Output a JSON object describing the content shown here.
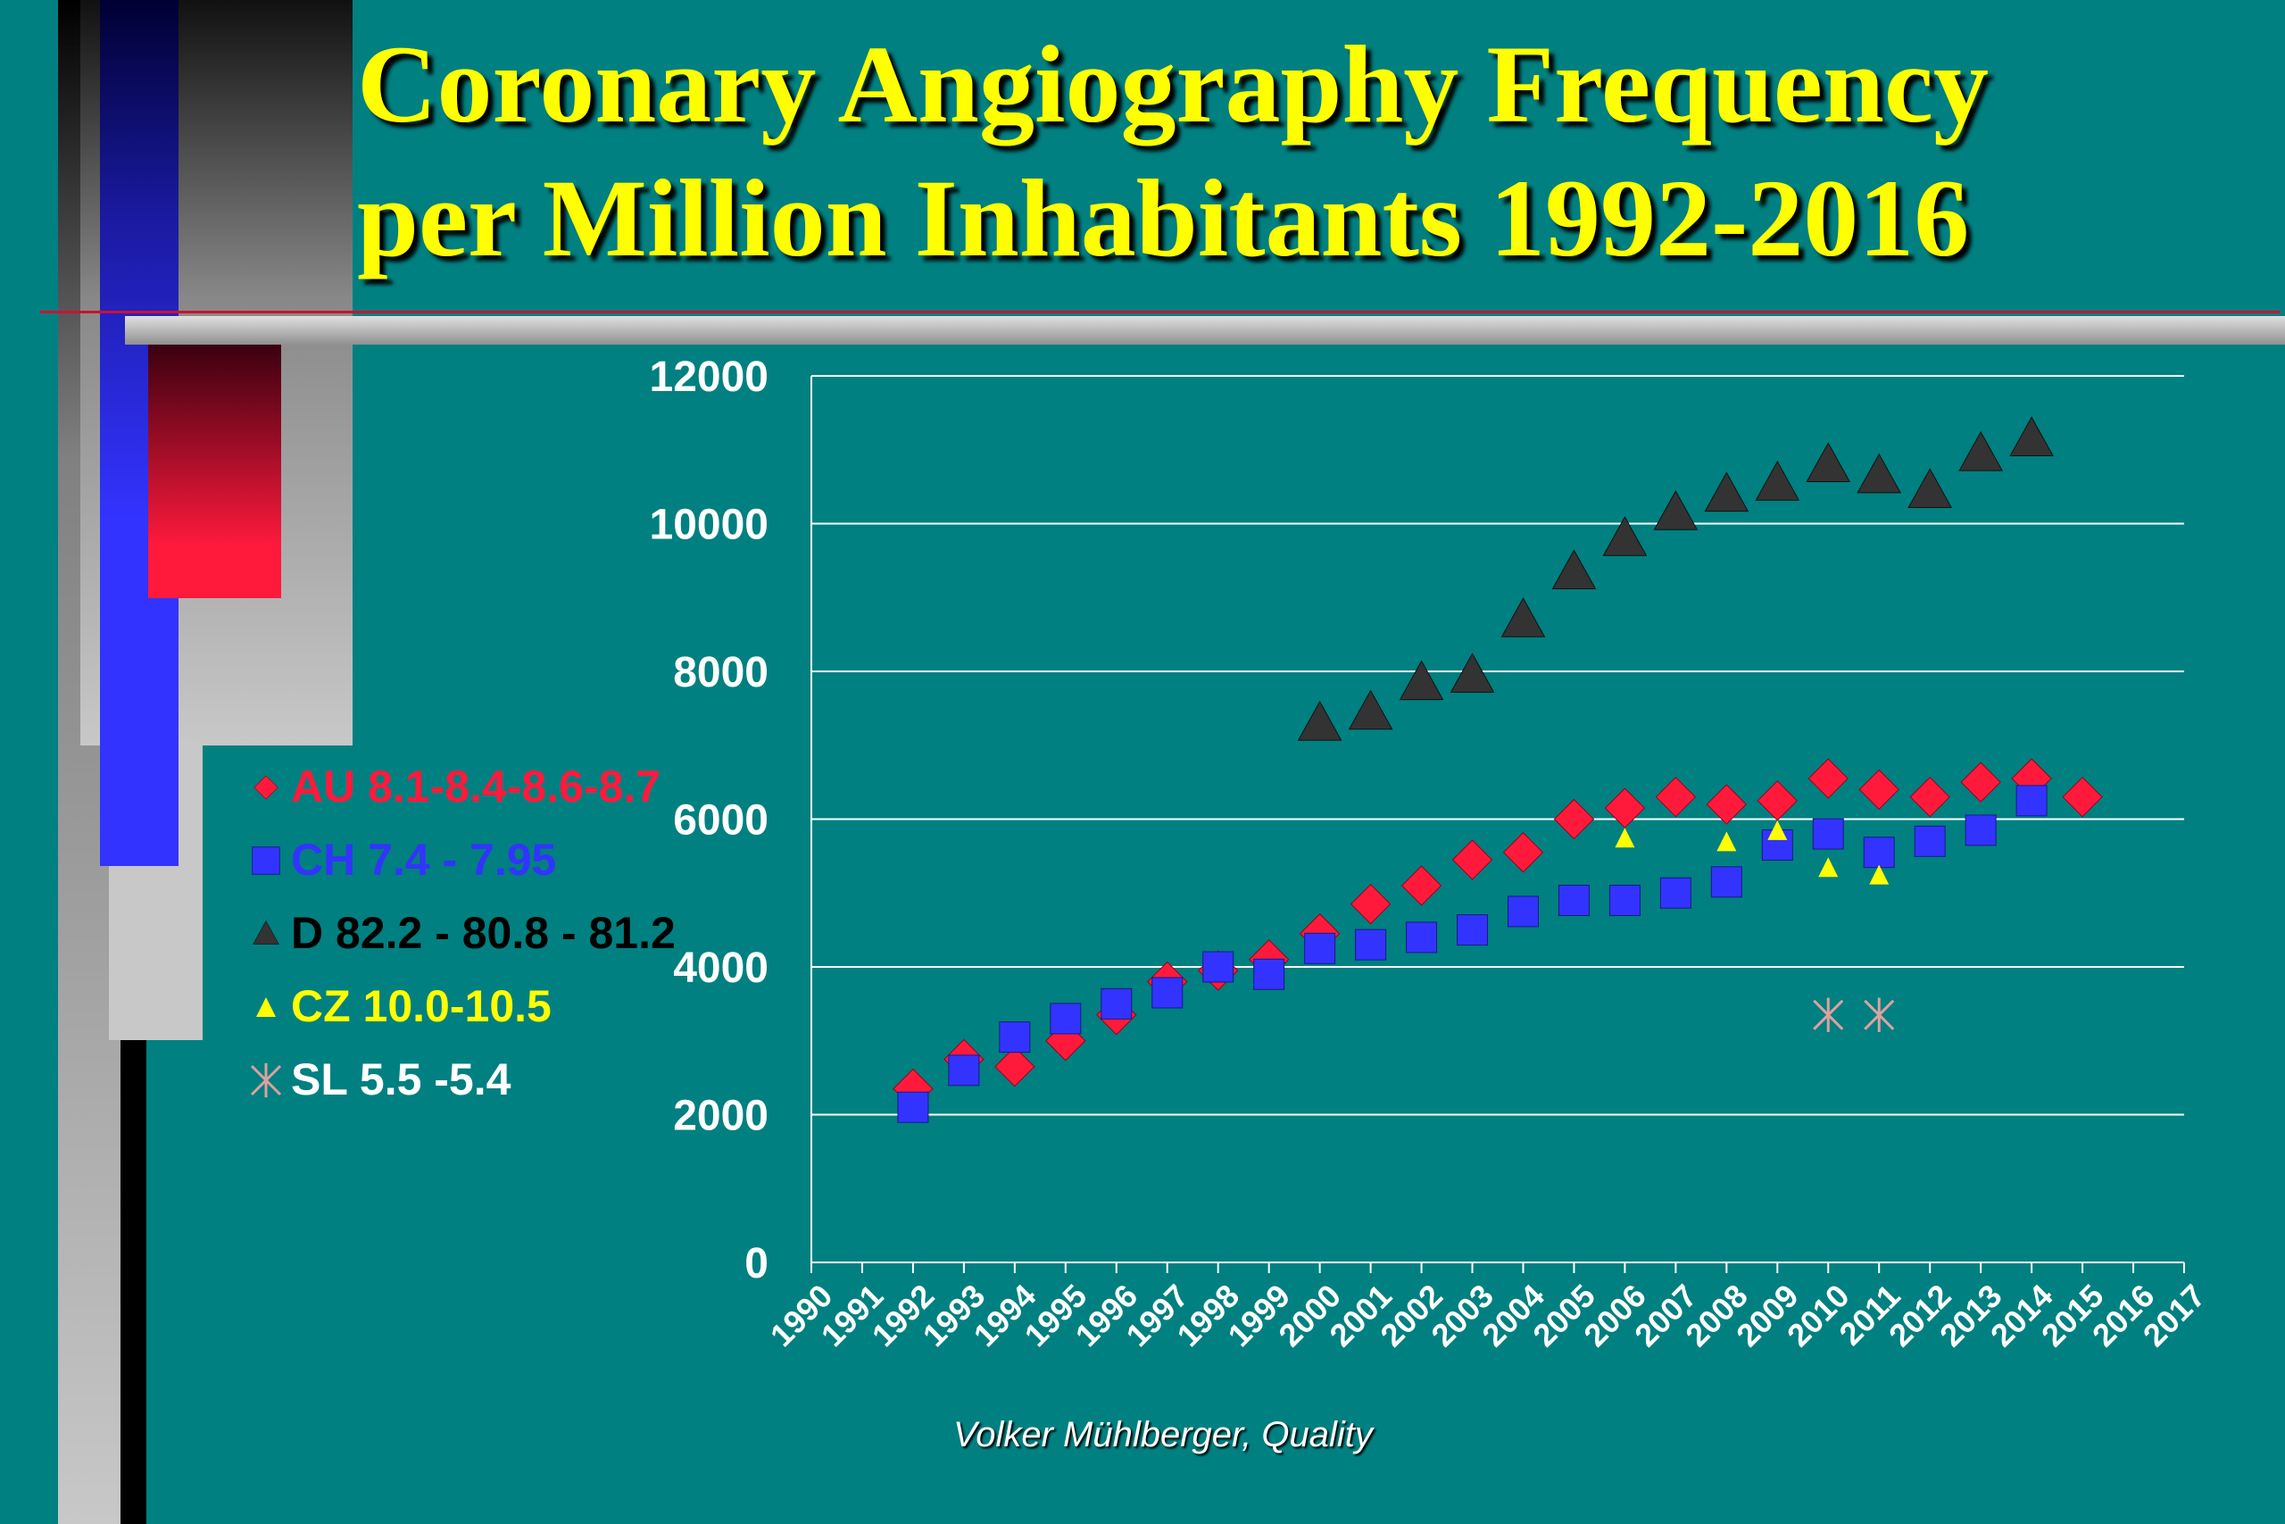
{
  "title": {
    "line1": "Coronary Angiography Frequency",
    "line2": "per Million Inhabitants 1992-2016"
  },
  "credit": "Volker Mühlberger, Quality",
  "colors": {
    "background": "#008080",
    "title": "#ffff00",
    "AU": "#ff1a3c",
    "CH": "#3333ff",
    "D": "#333333",
    "CZ": "#ffff00",
    "SL": "#e0a0a0"
  },
  "chart_data": {
    "type": "scatter",
    "title": "",
    "xlabel": "",
    "ylabel": "",
    "xlim": [
      1990,
      2017
    ],
    "ylim": [
      0,
      12000
    ],
    "y_ticks": [
      "0",
      "2000",
      "4000",
      "6000",
      "8000",
      "10000",
      "12000"
    ],
    "x_ticks": [
      "1990",
      "1991",
      "1992",
      "1993",
      "1994",
      "1995",
      "1996",
      "1997",
      "1998",
      "1999",
      "2000",
      "2001",
      "2002",
      "2003",
      "2004",
      "2005",
      "2006",
      "2007",
      "2008",
      "2009",
      "2010",
      "2011",
      "2012",
      "2013",
      "2014",
      "2015",
      "2016",
      "2017"
    ],
    "grid": true,
    "legend_position": "left",
    "series": [
      {
        "name": "AU 8.1-8.4-8.6-8.7",
        "marker": "diamond",
        "color": "#ff1a3c",
        "points": [
          [
            1992,
            2350
          ],
          [
            1993,
            2750
          ],
          [
            1994,
            2650
          ],
          [
            1995,
            3000
          ],
          [
            1996,
            3350
          ],
          [
            1997,
            3800
          ],
          [
            1998,
            3950
          ],
          [
            1999,
            4100
          ],
          [
            2000,
            4450
          ],
          [
            2001,
            4850
          ],
          [
            2002,
            5100
          ],
          [
            2003,
            5450
          ],
          [
            2004,
            5550
          ],
          [
            2005,
            6000
          ],
          [
            2006,
            6150
          ],
          [
            2007,
            6300
          ],
          [
            2008,
            6200
          ],
          [
            2009,
            6250
          ],
          [
            2010,
            6550
          ],
          [
            2011,
            6400
          ],
          [
            2012,
            6300
          ],
          [
            2013,
            6500
          ],
          [
            2014,
            6550
          ],
          [
            2015,
            6300
          ]
        ]
      },
      {
        "name": "CH 7.4 - 7.95",
        "marker": "square",
        "color": "#3333ff",
        "points": [
          [
            1992,
            2100
          ],
          [
            1993,
            2600
          ],
          [
            1994,
            3050
          ],
          [
            1995,
            3300
          ],
          [
            1996,
            3500
          ],
          [
            1997,
            3650
          ],
          [
            1998,
            4000
          ],
          [
            1999,
            3900
          ],
          [
            2000,
            4250
          ],
          [
            2001,
            4300
          ],
          [
            2002,
            4400
          ],
          [
            2003,
            4500
          ],
          [
            2004,
            4750
          ],
          [
            2005,
            4900
          ],
          [
            2006,
            4900
          ],
          [
            2007,
            5000
          ],
          [
            2008,
            5150
          ],
          [
            2009,
            5650
          ],
          [
            2010,
            5800
          ],
          [
            2011,
            5550
          ],
          [
            2012,
            5700
          ],
          [
            2013,
            5850
          ],
          [
            2014,
            6250
          ]
        ]
      },
      {
        "name": "D  82.2 - 80.8 - 81.2",
        "marker": "triangle",
        "color": "#333333",
        "points": [
          [
            2000,
            7300
          ],
          [
            2001,
            7450
          ],
          [
            2002,
            7850
          ],
          [
            2003,
            7950
          ],
          [
            2004,
            8700
          ],
          [
            2005,
            9350
          ],
          [
            2006,
            9800
          ],
          [
            2007,
            10150
          ],
          [
            2008,
            10400
          ],
          [
            2009,
            10550
          ],
          [
            2010,
            10800
          ],
          [
            2011,
            10650
          ],
          [
            2012,
            10450
          ],
          [
            2013,
            10950
          ],
          [
            2014,
            11150
          ]
        ]
      },
      {
        "name": "CZ 10.0-10.5",
        "marker": "small-triangle",
        "color": "#ffff00",
        "points": [
          [
            2006,
            5750
          ],
          [
            2008,
            5700
          ],
          [
            2009,
            5850
          ],
          [
            2010,
            5350
          ],
          [
            2011,
            5250
          ]
        ]
      },
      {
        "name": "SL 5.5 -5.4",
        "marker": "asterisk",
        "color": "#e0a0a0",
        "points": [
          [
            2010,
            3350
          ],
          [
            2011,
            3350
          ]
        ]
      }
    ]
  }
}
